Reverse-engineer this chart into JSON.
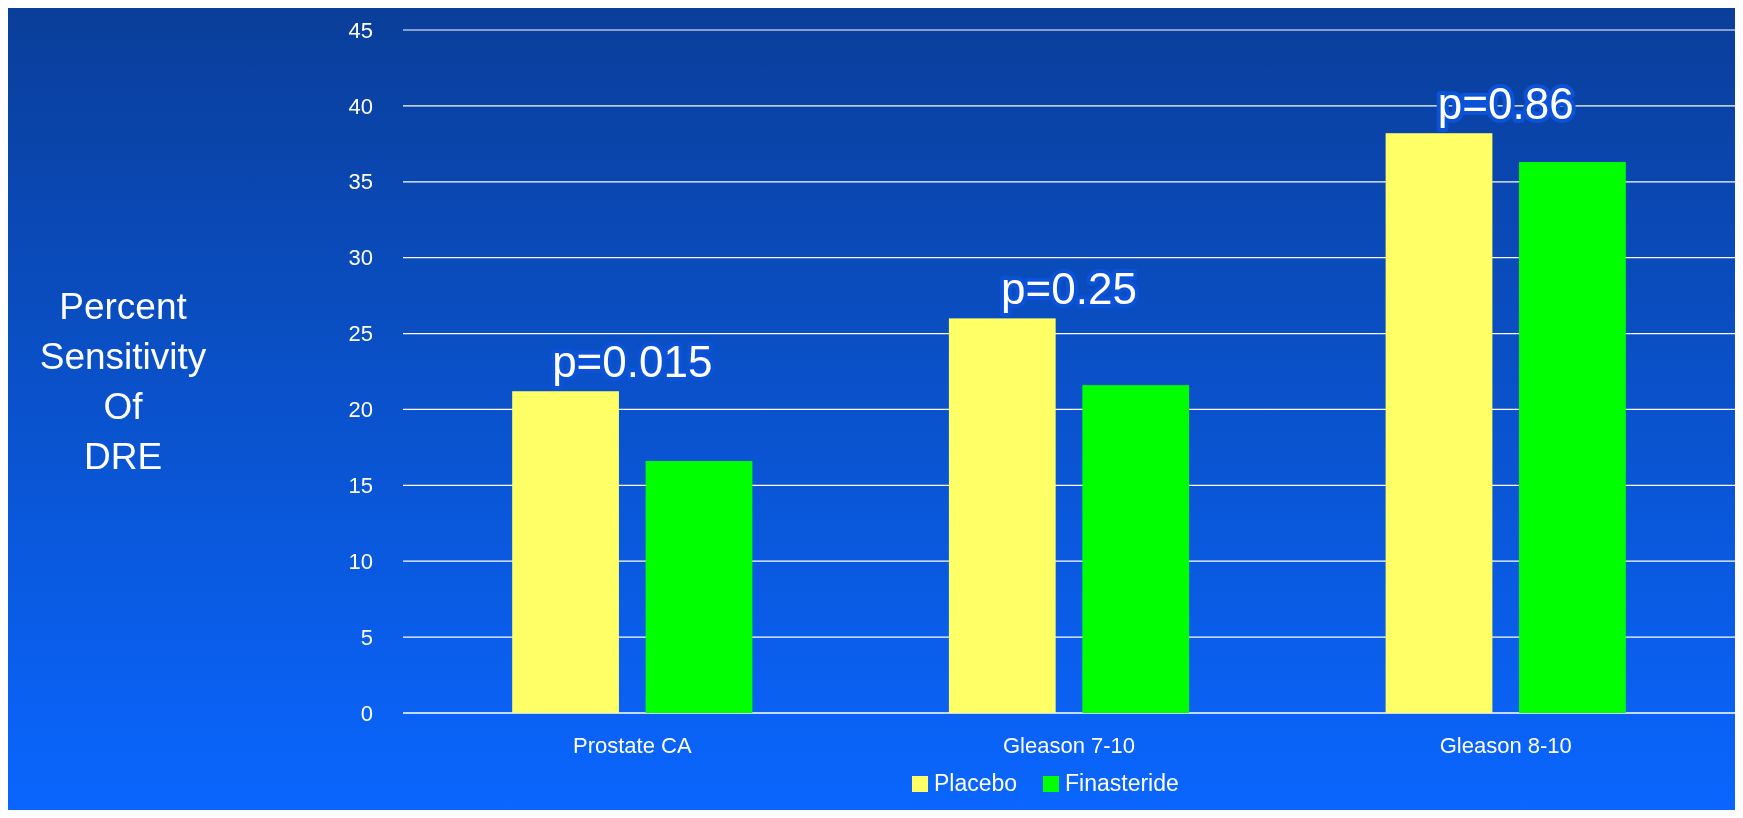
{
  "chart_data": {
    "type": "bar",
    "ylabel": "Percent Sensitivity Of DRE",
    "categories": [
      "Prostate CA",
      "Gleason 7-10",
      "Gleason 8-10"
    ],
    "series": [
      {
        "name": "Placebo",
        "color": "#ffff66",
        "values": [
          21.2,
          26.0,
          38.2
        ]
      },
      {
        "name": "Finasteride",
        "color": "#00ff00",
        "values": [
          16.6,
          21.6,
          36.3
        ]
      }
    ],
    "ylim": [
      0,
      45
    ],
    "yticks": [
      0,
      5,
      10,
      15,
      20,
      25,
      30,
      35,
      40,
      45
    ],
    "grid": "y",
    "legend": "bottom",
    "annotations": [
      "p=0.015",
      "p=0.25",
      "p=0.86"
    ]
  }
}
